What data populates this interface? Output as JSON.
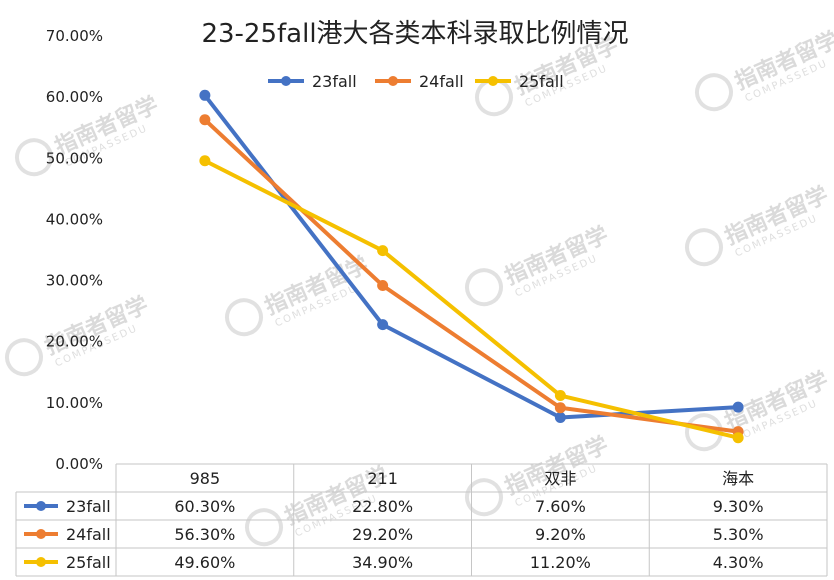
{
  "chart_data": {
    "type": "line",
    "title": "23-25fall港大各类本科录取比例情况",
    "categories": [
      "985",
      "211",
      "双非",
      "海本"
    ],
    "series": [
      {
        "name": "23fall",
        "values": [
          60.3,
          22.8,
          7.6,
          9.3
        ],
        "labels": [
          "60.30%",
          "22.80%",
          "7.60%",
          "9.30%"
        ],
        "color": "#4472C4"
      },
      {
        "name": "24fall",
        "values": [
          56.3,
          29.2,
          9.2,
          5.3
        ],
        "labels": [
          "56.30%",
          "29.20%",
          "9.20%",
          "5.30%"
        ],
        "color": "#ED7D31"
      },
      {
        "name": "25fall",
        "values": [
          49.6,
          34.9,
          11.2,
          4.3
        ],
        "labels": [
          "49.60%",
          "34.90%",
          "11.20%",
          "4.30%"
        ],
        "color": "#F5C000"
      }
    ],
    "ylim": [
      0,
      70
    ],
    "yticks": [
      "0.00%",
      "10.00%",
      "20.00%",
      "30.00%",
      "40.00%",
      "50.00%",
      "60.00%",
      "70.00%"
    ],
    "legend_position": "top-center",
    "grid": false,
    "data_table": true
  },
  "watermark": {
    "text": "指南者留学",
    "sub": "COMPASSEDU"
  }
}
